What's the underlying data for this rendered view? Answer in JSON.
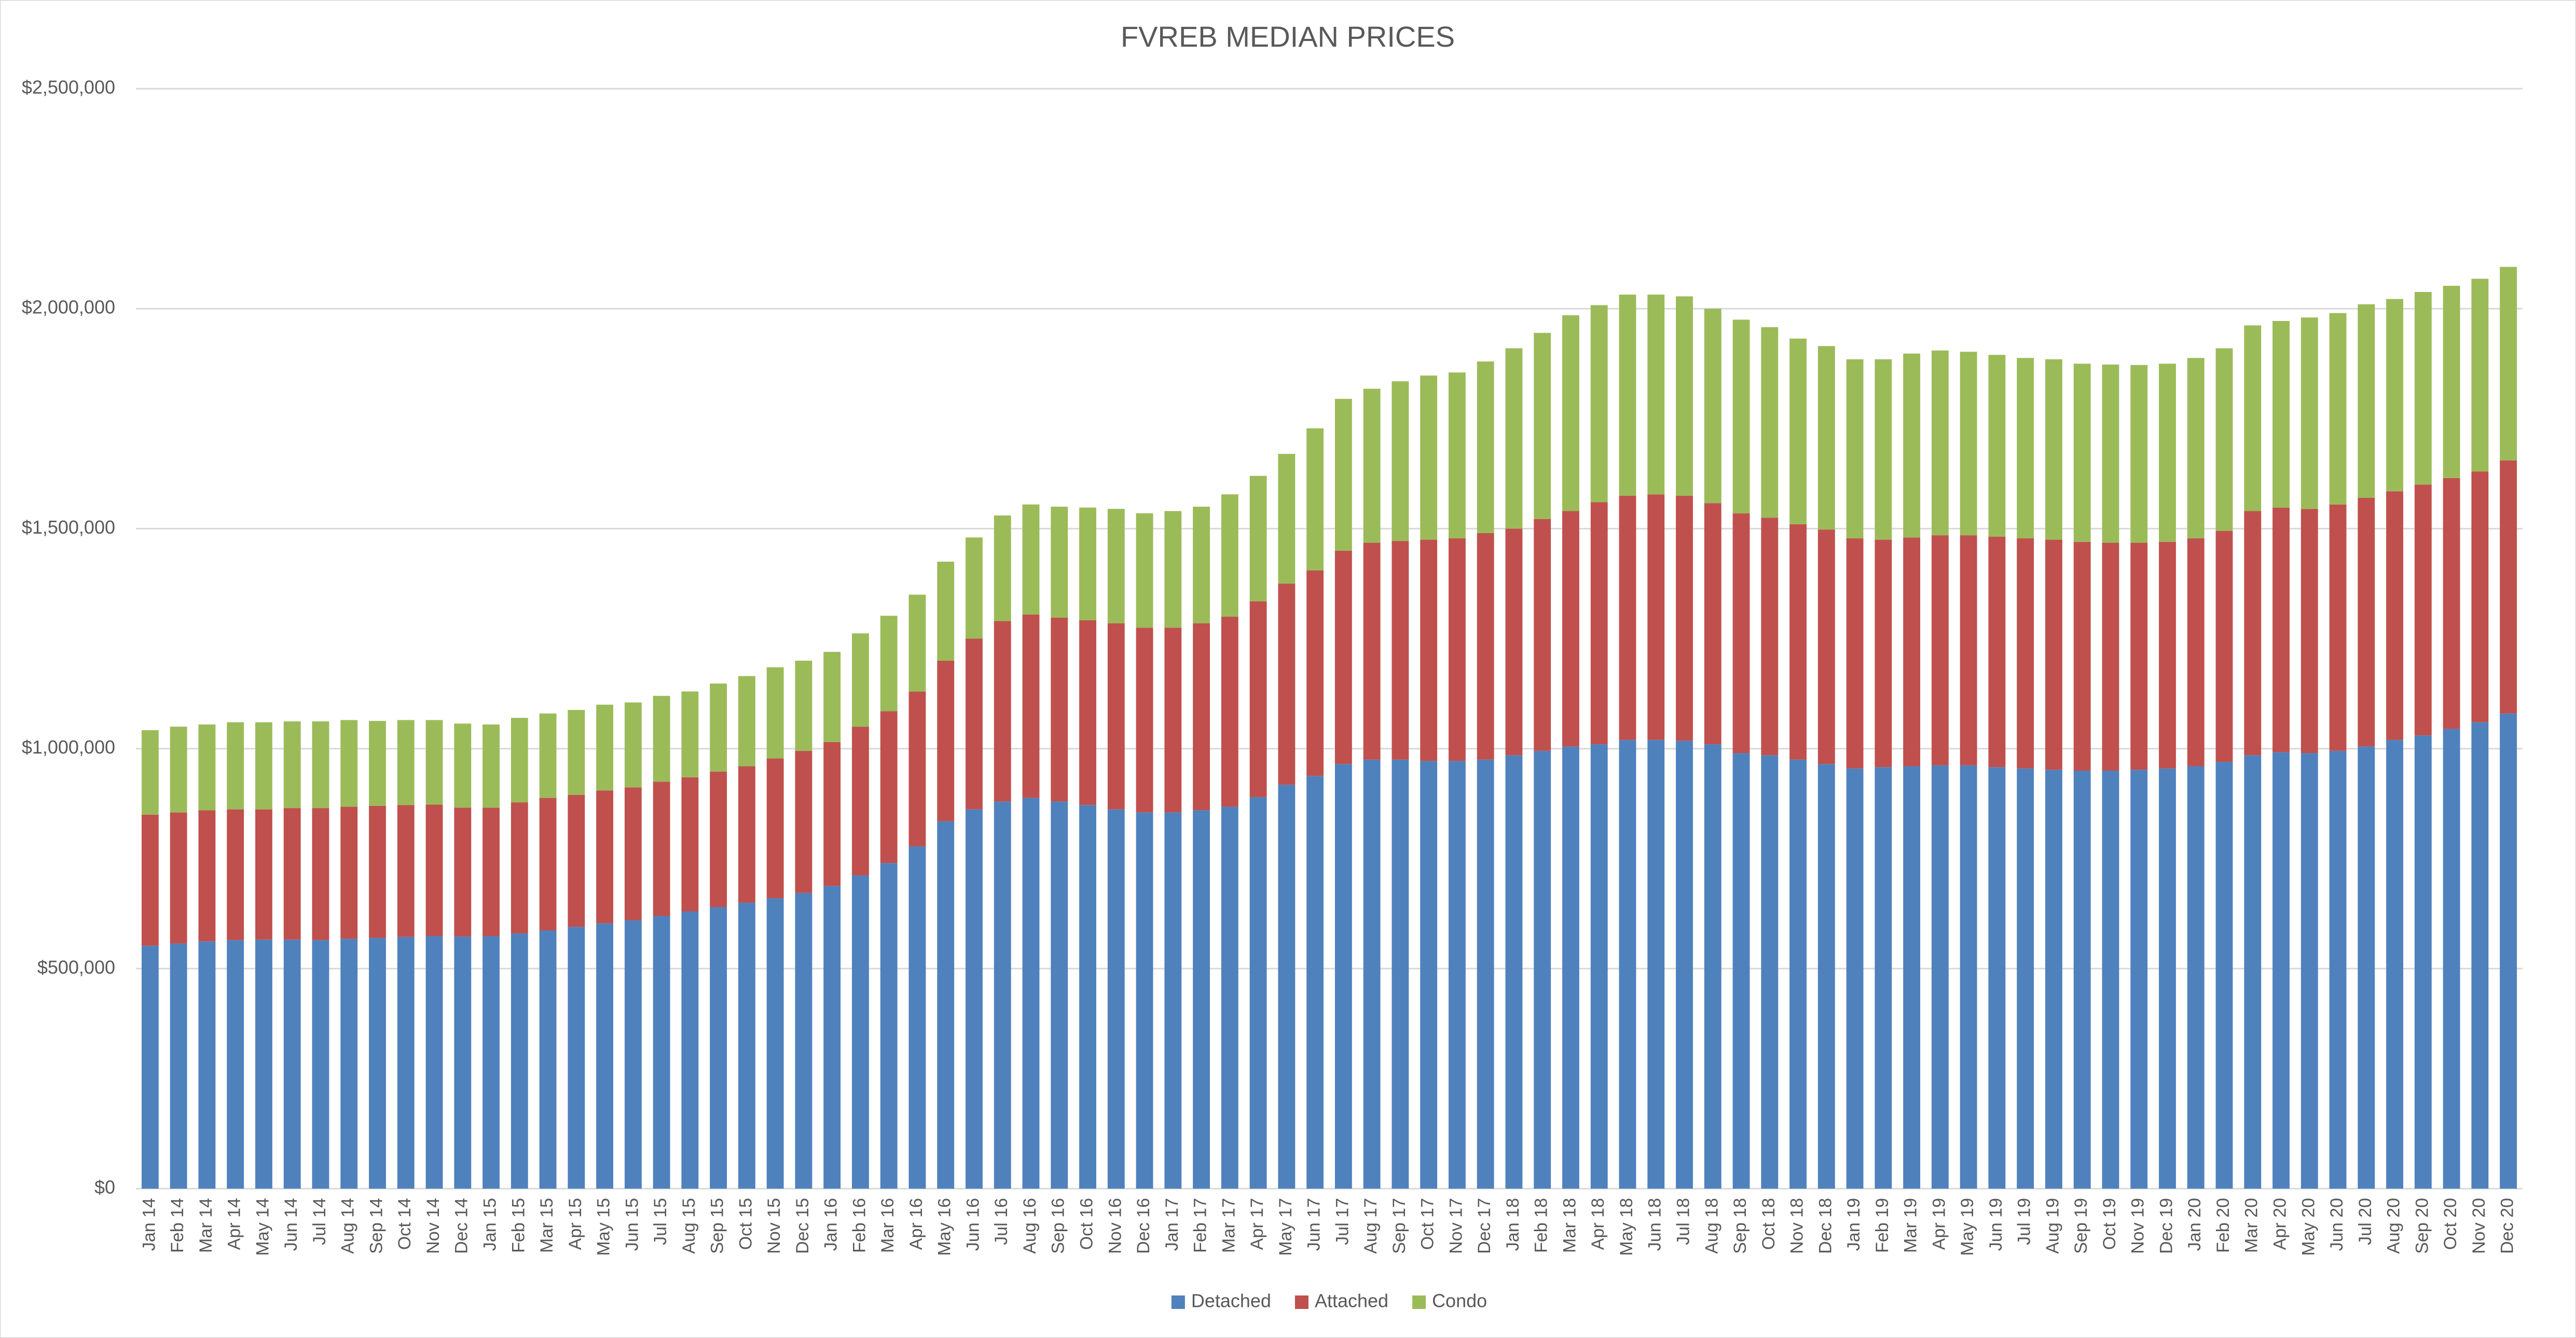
{
  "chart_data": {
    "type": "bar",
    "stacked": true,
    "title": "FVREB MEDIAN PRICES",
    "categories": [
      "Jan 14",
      "Feb 14",
      "Mar 14",
      "Apr 14",
      "May 14",
      "Jun 14",
      "Jul 14",
      "Aug 14",
      "Sep 14",
      "Oct 14",
      "Nov 14",
      "Dec 14",
      "Jan 15",
      "Feb 15",
      "Mar 15",
      "Apr 15",
      "May 15",
      "Jun 15",
      "Jul 15",
      "Aug 15",
      "Sep 15",
      "Oct 15",
      "Nov 15",
      "Dec 15",
      "Jan 16",
      "Feb 16",
      "Mar 16",
      "Apr 16",
      "May 16",
      "Jun 16",
      "Jul 16",
      "Aug 16",
      "Sep 16",
      "Oct 16",
      "Nov 16",
      "Dec 16",
      "Jan 17",
      "Feb 17",
      "Mar 17",
      "Apr 17",
      "May 17",
      "Jun 17",
      "Jul 17",
      "Aug 17",
      "Sep 17",
      "Oct 17",
      "Nov 17",
      "Dec 17",
      "Jan 18",
      "Feb 18",
      "Mar 18",
      "Apr 18",
      "May 18",
      "Jun 18",
      "Jul 18",
      "Aug 18",
      "Sep 18",
      "Oct 18",
      "Nov 18",
      "Dec 18",
      "Jan 19",
      "Feb 19",
      "Mar 19",
      "Apr 19",
      "May 19",
      "Jun 19",
      "Jul 19",
      "Aug 19",
      "Sep 19",
      "Oct 19",
      "Nov 19",
      "Dec 19",
      "Jan 20",
      "Feb 20",
      "Mar 20",
      "Apr 20",
      "May 20",
      "Jun 20",
      "Jul 20",
      "Aug 20",
      "Sep 20",
      "Oct 20",
      "Nov 20",
      "Dec 20"
    ],
    "series": [
      {
        "name": "Detached",
        "color": "#4f81bd",
        "values": [
          552000,
          557000,
          562000,
          565000,
          566000,
          566000,
          565000,
          568000,
          570000,
          572000,
          574000,
          573000,
          574000,
          580000,
          587000,
          595000,
          603000,
          610000,
          620000,
          630000,
          640000,
          650000,
          660000,
          672000,
          688000,
          712000,
          740000,
          778000,
          835000,
          862000,
          880000,
          888000,
          880000,
          872000,
          862000,
          855000,
          855000,
          860000,
          868000,
          890000,
          918000,
          938000,
          965000,
          975000,
          975000,
          972000,
          972000,
          975000,
          985000,
          995000,
          1005000,
          1010000,
          1020000,
          1020000,
          1018000,
          1010000,
          990000,
          985000,
          975000,
          965000,
          955000,
          958000,
          960000,
          962000,
          962000,
          958000,
          955000,
          952000,
          950000,
          950000,
          952000,
          955000,
          960000,
          970000,
          985000,
          992000,
          990000,
          995000,
          1005000,
          1020000,
          1030000,
          1045000,
          1060000,
          1080000
        ]
      },
      {
        "name": "Attached",
        "color": "#c0504d",
        "values": [
          298000,
          298000,
          298000,
          297000,
          296000,
          299000,
          300000,
          300000,
          300000,
          300000,
          299000,
          293000,
          292000,
          298000,
          301000,
          300000,
          302000,
          302000,
          305000,
          305000,
          308000,
          310000,
          318000,
          323000,
          327000,
          338000,
          345000,
          352000,
          365000,
          388000,
          410000,
          417000,
          418000,
          420000,
          423000,
          420000,
          420000,
          425000,
          432000,
          445000,
          457000,
          467000,
          485000,
          493000,
          497000,
          503000,
          506000,
          515000,
          515000,
          527000,
          535000,
          550000,
          555000,
          558000,
          557000,
          548000,
          545000,
          540000,
          535000,
          533000,
          523000,
          517000,
          520000,
          523000,
          523000,
          524000,
          523000,
          523000,
          520000,
          518000,
          516000,
          515000,
          518000,
          525000,
          555000,
          556000,
          555000,
          560000,
          565000,
          565000,
          570000,
          570000,
          570000,
          575000
        ]
      },
      {
        "name": "Condo",
        "color": "#9bbb59",
        "values": [
          192000,
          195000,
          195000,
          198000,
          198000,
          197000,
          197000,
          197000,
          193000,
          193000,
          192000,
          191000,
          189000,
          192000,
          192000,
          193000,
          195000,
          193000,
          195000,
          195000,
          200000,
          205000,
          207000,
          205000,
          205000,
          212000,
          217000,
          220000,
          225000,
          230000,
          240000,
          250000,
          252000,
          256000,
          260000,
          260000,
          265000,
          265000,
          278000,
          285000,
          295000,
          323000,
          345000,
          350000,
          363000,
          373000,
          377000,
          390000,
          410000,
          423000,
          445000,
          448000,
          457000,
          454000,
          453000,
          442000,
          440000,
          433000,
          422000,
          417000,
          407000,
          410000,
          418000,
          420000,
          417000,
          413000,
          410000,
          410000,
          405000,
          405000,
          404000,
          405000,
          410000,
          415000,
          422000,
          424000,
          435000,
          435000,
          440000,
          437000,
          438000,
          437000,
          438000,
          440000
        ]
      }
    ],
    "ylim": [
      0,
      2500000
    ],
    "yticks": [
      {
        "value": 0,
        "label": "$0"
      },
      {
        "value": 500000,
        "label": "$500,000"
      },
      {
        "value": 1000000,
        "label": "$1,000,000"
      },
      {
        "value": 1500000,
        "label": "$1,500,000"
      },
      {
        "value": 2000000,
        "label": "$2,000,000"
      },
      {
        "value": 2500000,
        "label": "$2,500,000"
      }
    ],
    "grid": true,
    "legend": "bottom"
  }
}
